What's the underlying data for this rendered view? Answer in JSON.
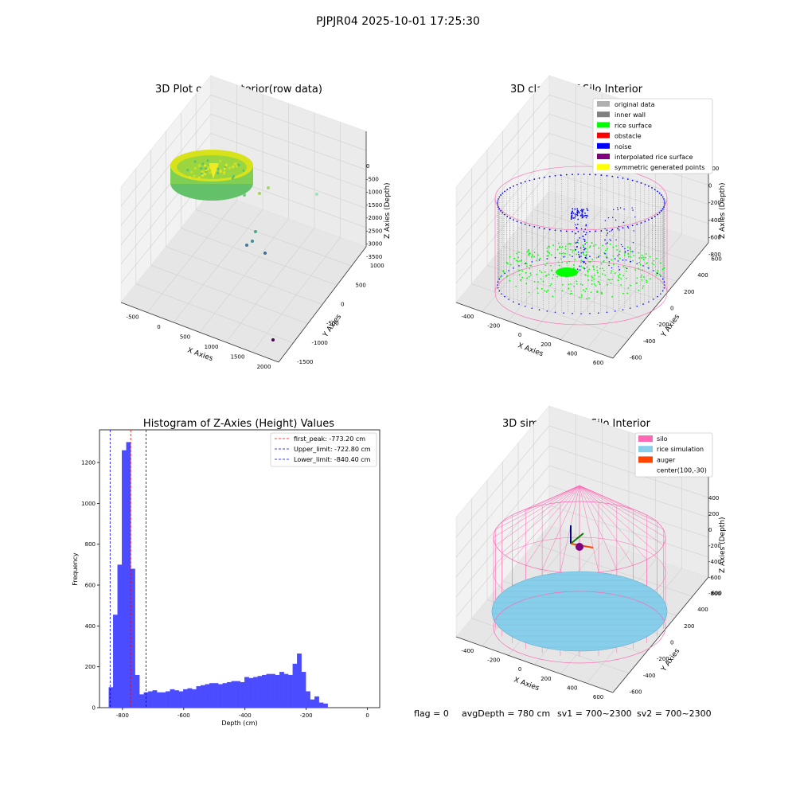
{
  "figure": {
    "suptitle": "PJPJR04 2025-10-01 17:25:30",
    "footer": {
      "flag": "flag = 0",
      "avg": "avgDepth = 780 cm",
      "sv1": "sv1 = 700~2300",
      "sv2": "sv2 = 700~2300"
    }
  },
  "colors": {
    "hist_bar": "#4b4bff",
    "first_peak": "#ff0000",
    "limit_line": "#0000ff",
    "original": "#b0b0b0",
    "inner_wall": "#808080",
    "rice_surface": "#00ff00",
    "obstacle": "#ff0000",
    "noise": "#0000ff",
    "interpolated": "#800080",
    "symmetric": "#ffff00",
    "silo": "#ff69b4",
    "rice_sim": "#87ceeb",
    "auger": "#ff4500"
  },
  "chart_data": [
    {
      "type": "scatter",
      "title": "3D Plot of Silo Interior(row data)",
      "xlabel": "X Axies",
      "ylabel": "Y Axies",
      "zlabel": "Z Axies (Depth)",
      "x_ticks": [
        "-500",
        "0",
        "500",
        "1000",
        "1500",
        "2000"
      ],
      "y_ticks": [
        "-1500",
        "-1000",
        "-500",
        "0",
        "500",
        "1000"
      ],
      "z_ticks": [
        "0",
        "-500",
        "-1000",
        "-1500",
        "-2000",
        "-2500",
        "-3000",
        "-3500"
      ],
      "outlier_points": [
        {
          "x": 2000,
          "y": -1400,
          "z": -3600
        },
        {
          "x": 900,
          "y": 600,
          "z": -1000
        },
        {
          "x": 600,
          "y": 300,
          "z": -900
        },
        {
          "x": 700,
          "y": -800,
          "z": -2500
        },
        {
          "x": 500,
          "y": -500,
          "z": -2600
        }
      ]
    },
    {
      "type": "scatter",
      "title": "3D classify of Silo Interior",
      "xlabel": "X Axies",
      "ylabel": "Y Axies",
      "zlabel": "Z Axies (Depth)",
      "x_ticks": [
        "-400",
        "-200",
        "0",
        "200",
        "400",
        "600"
      ],
      "y_ticks": [
        "-600",
        "-400",
        "-200",
        "0",
        "200",
        "400",
        "600"
      ],
      "z_ticks": [
        "200",
        "0",
        "-200",
        "-400",
        "-600",
        "-800"
      ],
      "legend": [
        "original data",
        "inner wall",
        "rice surface",
        "obstacle",
        "noise",
        "interpolated rice surface",
        "symmetric generated points"
      ],
      "legend_placement": "top-right"
    },
    {
      "type": "bar",
      "title": "Histogram of Z-Axies (Height) Values",
      "xlabel": "Depth (cm)",
      "ylabel": "Frequency",
      "xlim": [
        -875,
        40
      ],
      "ylim": [
        0,
        1360
      ],
      "x_ticks": [
        -800,
        -600,
        -400,
        -200,
        0
      ],
      "y_ticks": [
        0,
        200,
        400,
        600,
        800,
        1000,
        1200
      ],
      "bin_start": -845,
      "bin_width": 14.3,
      "values": [
        100,
        455,
        700,
        1260,
        1300,
        680,
        160,
        65,
        75,
        80,
        85,
        75,
        75,
        80,
        90,
        85,
        80,
        90,
        95,
        90,
        105,
        110,
        115,
        120,
        120,
        115,
        120,
        125,
        130,
        130,
        125,
        150,
        145,
        150,
        155,
        160,
        165,
        165,
        160,
        175,
        165,
        160,
        215,
        265,
        175,
        80,
        40,
        55,
        25,
        20
      ],
      "lines": [
        {
          "label": "first_peak: -773.20 cm",
          "x": -773.2,
          "color": "red"
        },
        {
          "label": "Upper_limit: -722.80 cm",
          "x": -722.8,
          "color": "blue"
        },
        {
          "label": "Lower_limit: -840.40 cm",
          "x": -840.4,
          "color": "blue"
        }
      ],
      "legend_placement": "top-right"
    },
    {
      "type": "scatter",
      "title": "3D simulation of Silo Interior",
      "xlabel": "X Axies",
      "ylabel": "Y Axies",
      "zlabel": "Z Axies (Depth)",
      "x_ticks": [
        "-400",
        "-200",
        "0",
        "200",
        "400",
        "600"
      ],
      "y_ticks": [
        "-600",
        "-400",
        "-200",
        "0",
        "200",
        "400",
        "600"
      ],
      "z_ticks": [
        "400",
        "200",
        "0",
        "-200",
        "-400",
        "-600",
        "-800"
      ],
      "legend": [
        "silo",
        "rice simulation",
        "auger",
        "center(100,-30)"
      ],
      "legend_placement": "top-right"
    }
  ]
}
